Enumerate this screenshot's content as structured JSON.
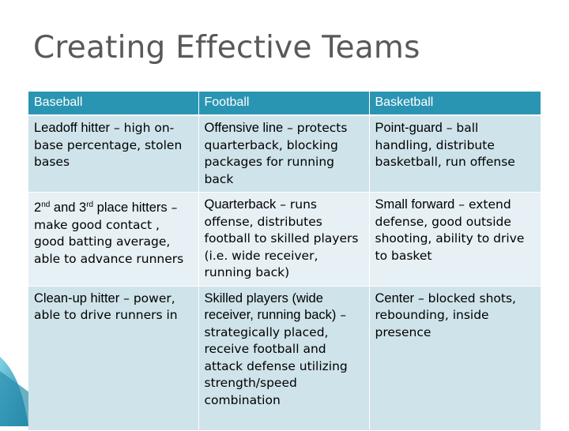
{
  "slide": {
    "title": "Creating Effective Teams"
  },
  "table": {
    "headers": [
      "Baseball",
      "Football",
      "Basketball"
    ],
    "rows": [
      [
        {
          "role": "Leadoff hitter",
          "desc": " – high on-base percentage, stolen bases"
        },
        {
          "role": "Offensive line",
          "desc": " – protects quarterback, blocking packages for running back"
        },
        {
          "role": "Point-guard",
          "desc": " – ball handling, distribute basketball, run offense"
        }
      ],
      [
        {
          "role_a": "2",
          "sup_a": "nd",
          "role_b": " and 3",
          "sup_b": "rd",
          "role_c": " place hitters",
          "desc": " – make good contact , good batting average, able to advance runners"
        },
        {
          "role": "Quarterback",
          "desc": " – runs offense, distributes football to skilled players (i.e. wide receiver, running back)"
        },
        {
          "role": "Small forward",
          "desc": " – extend defense, good outside shooting, ability to drive to basket"
        }
      ],
      [
        {
          "role": "Clean-up hitter",
          "desc": " – power, able to drive runners in"
        },
        {
          "role": "Skilled players (wide receiver, running back)",
          "desc": " – strategically placed, receive football and attack defense utilizing strength/speed combination"
        },
        {
          "role": "Center",
          "desc": " – blocked shots, rebounding, inside presence"
        }
      ]
    ]
  },
  "theme": {
    "header_bg": "#2a95b2",
    "row_dark": "#cfe3ea",
    "row_light": "#e7f0f4",
    "title_color": "#595959"
  }
}
